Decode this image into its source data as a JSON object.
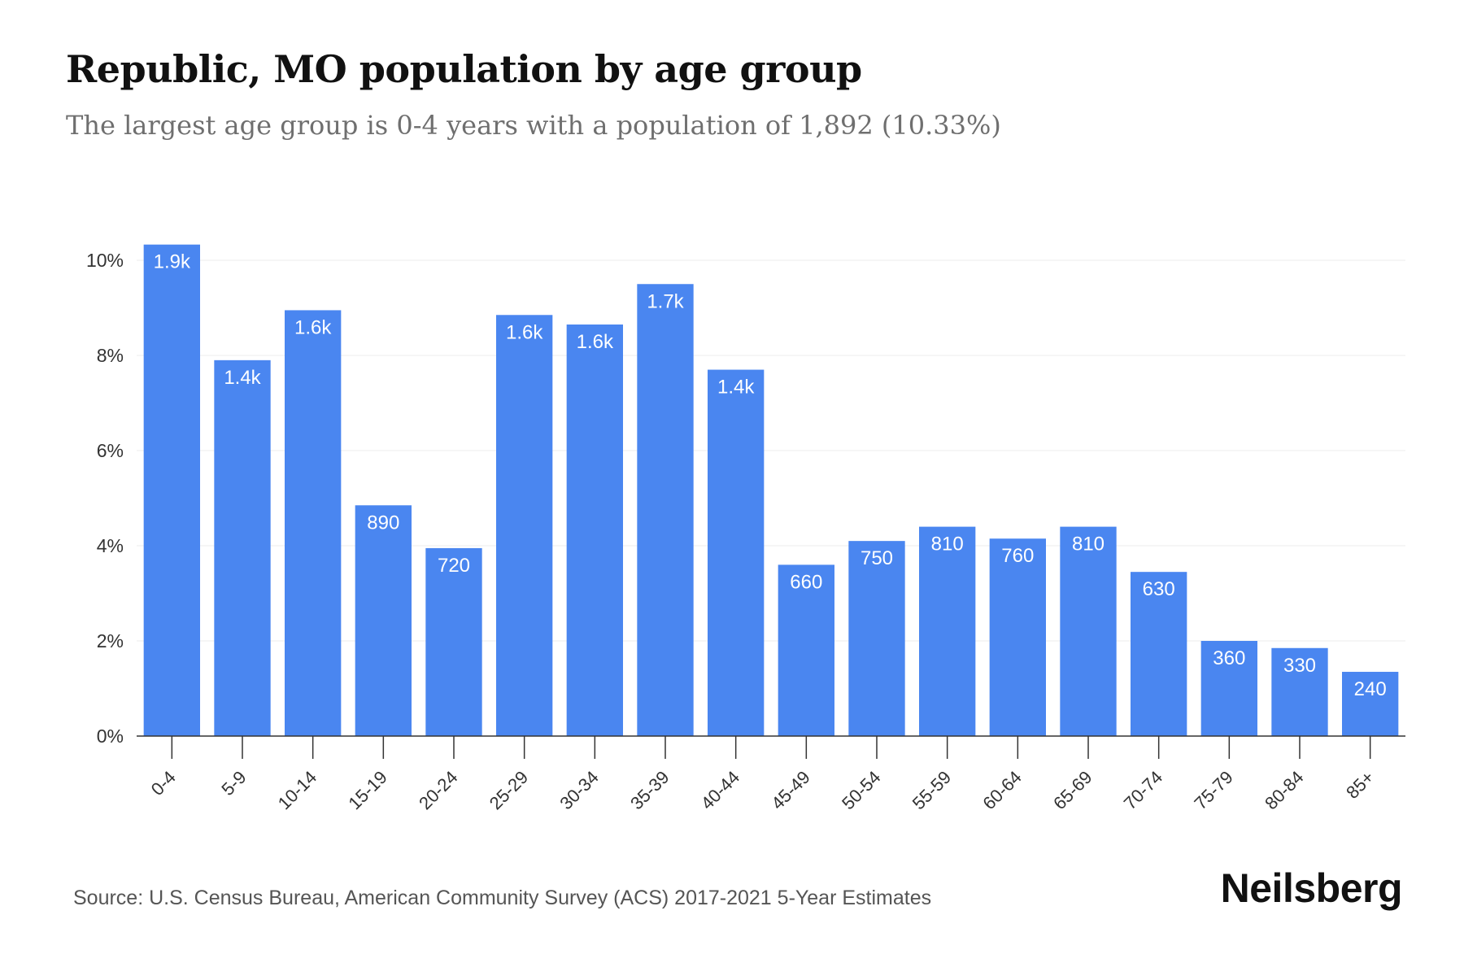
{
  "title": "Republic, MO population by age group",
  "subtitle": "The largest age group is 0-4 years with a population of 1,892 (10.33%)",
  "source": "Source: U.S. Census Bureau, American Community Survey (ACS) 2017-2021 5-Year Estimates",
  "brand": "Neilsberg",
  "colors": {
    "bar": "#4a86f0",
    "grid": "#ececec",
    "axis": "#333333",
    "label": "#ffffff"
  },
  "chart_data": {
    "type": "bar",
    "categories": [
      "0-4",
      "5-9",
      "10-14",
      "15-19",
      "20-24",
      "25-29",
      "30-34",
      "35-39",
      "40-44",
      "45-49",
      "50-54",
      "55-59",
      "60-64",
      "65-69",
      "70-74",
      "75-79",
      "80-84",
      "85+"
    ],
    "values": [
      10.33,
      7.9,
      8.95,
      4.85,
      3.95,
      8.85,
      8.65,
      9.5,
      7.7,
      3.6,
      4.1,
      4.4,
      4.15,
      4.4,
      3.45,
      2.0,
      1.85,
      1.35
    ],
    "data_labels": [
      "1.9k",
      "1.4k",
      "1.6k",
      "890",
      "720",
      "1.6k",
      "1.6k",
      "1.7k",
      "1.4k",
      "660",
      "750",
      "810",
      "760",
      "810",
      "630",
      "360",
      "330",
      "240"
    ],
    "ylabel": "",
    "xlabel": "",
    "ylim": [
      0,
      10
    ],
    "yticks": [
      0,
      2,
      4,
      6,
      8,
      10
    ],
    "ytick_labels": [
      "0%",
      "2%",
      "4%",
      "6%",
      "8%",
      "10%"
    ],
    "grid": true,
    "legend": "none"
  }
}
